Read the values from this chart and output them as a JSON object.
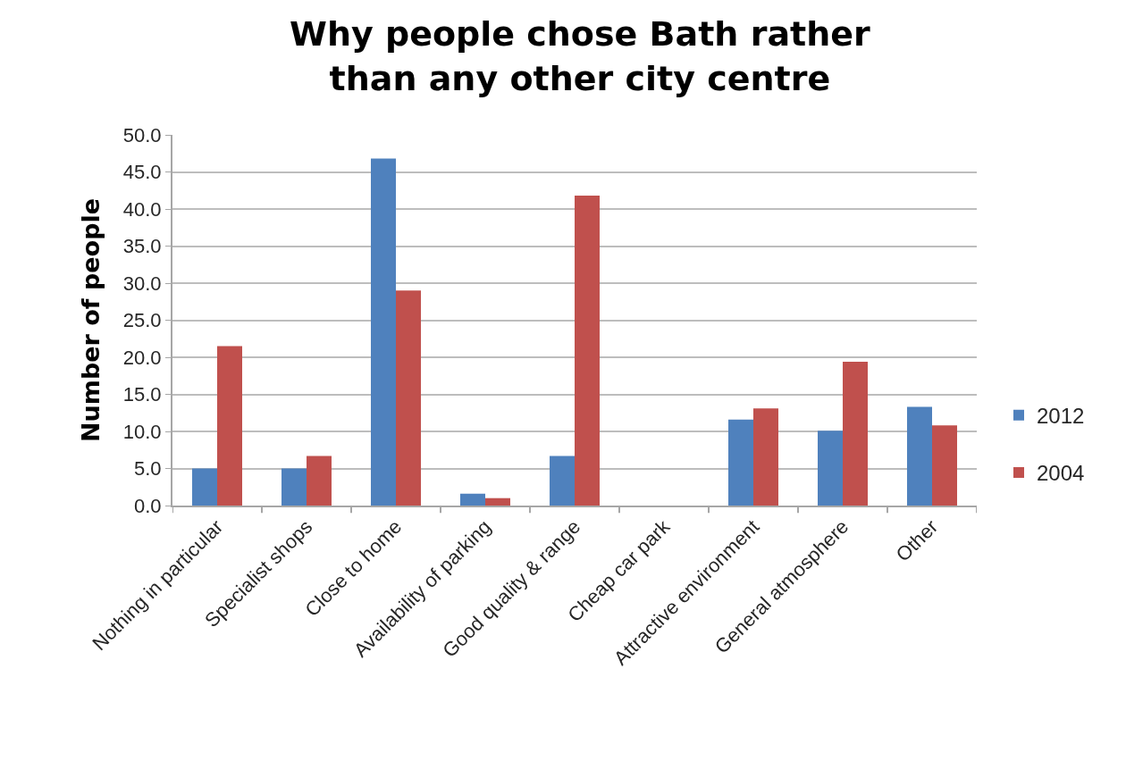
{
  "chart_data": {
    "type": "bar",
    "title": "Why people chose Bath rather\nthan any other city centre",
    "ylabel": "Number of people",
    "categories": [
      "Nothing in particular",
      "Specialist shops",
      "Close to home",
      "Availability of parking",
      "Good quality & range",
      "Cheap car park",
      "Attractive environment",
      "General atmosphere",
      "Other"
    ],
    "series": [
      {
        "name": "2012",
        "color": "#4f81bd",
        "values": [
          5.0,
          5.0,
          46.8,
          1.6,
          6.7,
          0,
          11.6,
          10.1,
          13.3
        ]
      },
      {
        "name": "2004",
        "color": "#c0504d",
        "values": [
          21.5,
          6.7,
          29.0,
          1.0,
          41.8,
          0,
          13.1,
          19.4,
          10.8
        ]
      }
    ],
    "ylim": [
      0,
      50
    ],
    "yticks": [
      {
        "value": 0,
        "label": "0.0"
      },
      {
        "value": 5,
        "label": "5.0"
      },
      {
        "value": 10,
        "label": "10.0"
      },
      {
        "value": 15,
        "label": "15.0"
      },
      {
        "value": 20,
        "label": "20.0"
      },
      {
        "value": 25,
        "label": "25.0"
      },
      {
        "value": 30,
        "label": "30.0"
      },
      {
        "value": 35,
        "label": "35.0"
      },
      {
        "value": 40,
        "label": "40.0"
      },
      {
        "value": 45,
        "label": "45.0"
      },
      {
        "value": 50,
        "label": "50.0"
      }
    ],
    "grid": "y",
    "legend": "right"
  }
}
